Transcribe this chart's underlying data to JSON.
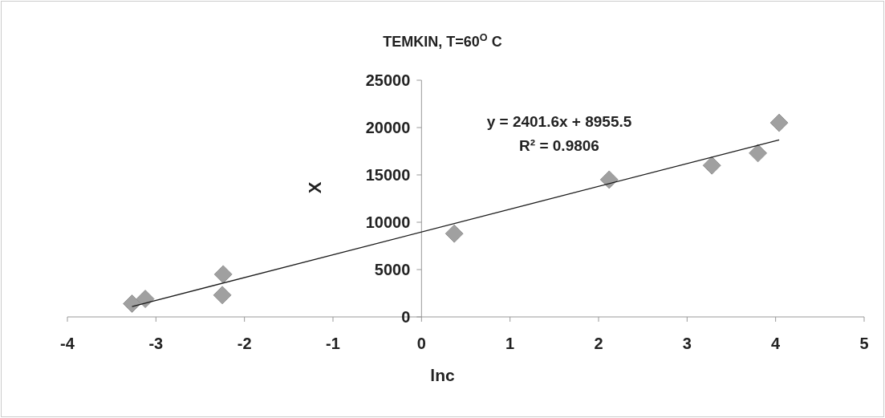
{
  "chart_data": {
    "type": "scatter",
    "title": "TEMKIN, T=60$^{O}$ C",
    "xlabel": "lnc",
    "ylabel": "X",
    "xlim": [
      -4,
      5
    ],
    "xticks": [
      -4,
      -3,
      -2,
      -1,
      0,
      1,
      2,
      3,
      4,
      5
    ],
    "ylim": [
      0,
      25000
    ],
    "yticks": [
      0,
      5000,
      10000,
      15000,
      20000,
      25000
    ],
    "grid": false,
    "marker": "diamond",
    "annotations": [
      "y = 2401.6x + 8955.5",
      "R² = 0.9806"
    ],
    "series": [
      {
        "color": "#a0a0a0",
        "x": [
          -3.27,
          -3.12,
          -2.24,
          -2.25,
          0.37,
          2.12,
          3.28,
          3.8,
          4.04
        ],
        "values": [
          1400,
          1900,
          4500,
          2300,
          8800,
          14500,
          16000,
          17300,
          20500
        ]
      },
      {
        "type": "line",
        "color": "#1a1a1a",
        "marker": "none",
        "line_style": "solid",
        "x": [
          -3.27,
          4.04
        ],
        "values": [
          1100,
          18700
        ]
      }
    ]
  }
}
